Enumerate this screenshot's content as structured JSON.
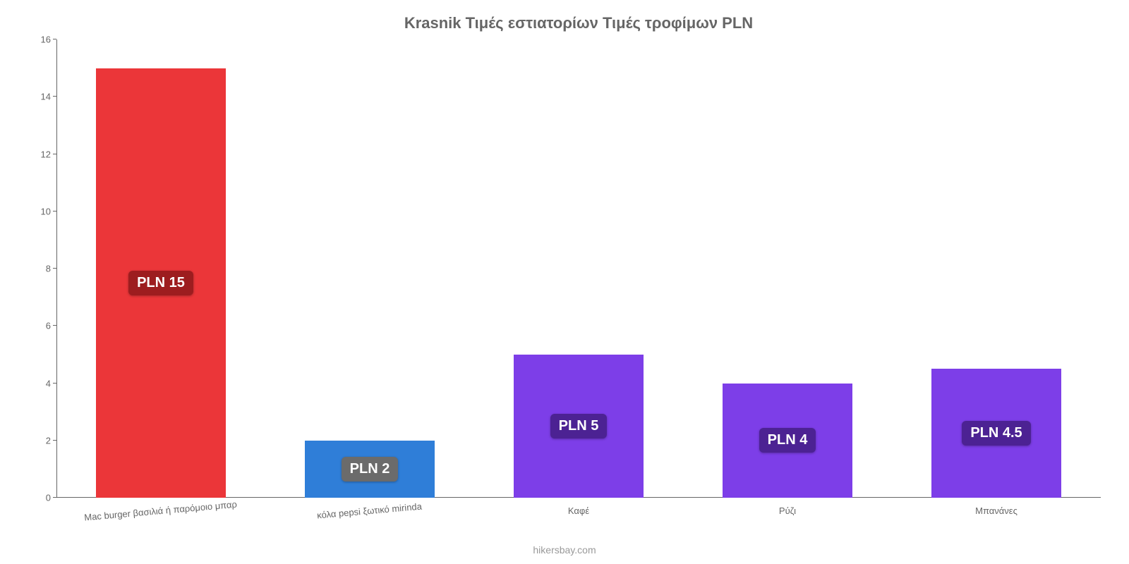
{
  "chart": {
    "type": "bar",
    "title": "Krasnik Τιμές εστιατορίων Τιμές τροφίμων PLN",
    "title_fontsize": 22,
    "title_color": "#666666",
    "background_color": "#ffffff",
    "attribution": "hikersbay.com",
    "attribution_color": "#999999",
    "attribution_fontsize": 14,
    "ylim": [
      0,
      16
    ],
    "yticks": [
      0,
      2,
      4,
      6,
      8,
      10,
      12,
      14,
      16
    ],
    "ytick_fontsize": 13,
    "ytick_color": "#666666",
    "axis_color": "#666666",
    "bar_width_pct": 62,
    "xlabel_fontsize": 13,
    "xlabel_color": "#666666",
    "xlabel_rotate_first": -5,
    "bar_label_prefix": "PLN ",
    "bar_label_fontsize": 20,
    "bar_label_radius": 6,
    "categories": [
      "Mac burger βασιλιά ή παρόμοιο μπαρ",
      "κόλα pepsi ξωτικό mirinda",
      "Καφέ",
      "Ρύζι",
      "Μπανάνες"
    ],
    "values": [
      15,
      2,
      5,
      4,
      4.5
    ],
    "value_labels": [
      "PLN 15",
      "PLN 2",
      "PLN 5",
      "PLN 4",
      "PLN 4.5"
    ],
    "bar_colors": [
      "#eb3639",
      "#2f7ed8",
      "#7d3ee8",
      "#7d3ee8",
      "#7d3ee8"
    ],
    "bar_label_bg": [
      "#9d1d1f",
      "#6b6b6b",
      "#4c2293",
      "#4c2293",
      "#4c2293"
    ],
    "bar_label_text_color": [
      "#ffffff",
      "#ffffff",
      "#ffffff",
      "#ffffff",
      "#ffffff"
    ]
  }
}
